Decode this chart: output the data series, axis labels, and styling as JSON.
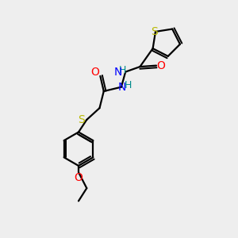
{
  "background_color": "#eeeeee",
  "bond_color": "#000000",
  "atom_colors": {
    "S": "#b8b800",
    "O": "#ff0000",
    "N": "#0000ff",
    "HN": "#008b8b",
    "C": "#000000"
  },
  "lw": 1.6,
  "fs": 10,
  "figsize": [
    3.0,
    3.0
  ],
  "dpi": 100
}
